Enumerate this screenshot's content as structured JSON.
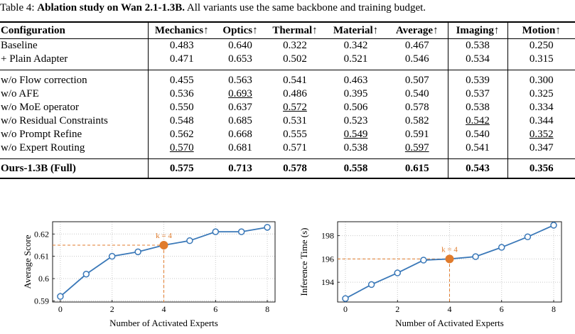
{
  "caption": {
    "label": "Table 4:",
    "title": "Ablation study on Wan 2.1-1.3B.",
    "text": "All variants use the same backbone and training budget."
  },
  "table": {
    "headers": [
      "Configuration",
      "Mechanics↑",
      "Optics↑",
      "Thermal↑",
      "Material↑",
      "Average↑",
      "Imaging↑",
      "Motion↑"
    ],
    "rows": [
      {
        "name": "Baseline",
        "values": [
          "0.483",
          "0.640",
          "0.322",
          "0.342",
          "0.467",
          "0.538",
          "0.250"
        ],
        "underline": []
      },
      {
        "name": "+ Plain Adapter",
        "values": [
          "0.471",
          "0.653",
          "0.502",
          "0.521",
          "0.546",
          "0.534",
          "0.315"
        ],
        "underline": []
      },
      {
        "name": "w/o Flow correction",
        "values": [
          "0.455",
          "0.563",
          "0.541",
          "0.463",
          "0.507",
          "0.539",
          "0.300"
        ],
        "underline": []
      },
      {
        "name": "w/o AFE",
        "values": [
          "0.536",
          "0.693",
          "0.486",
          "0.395",
          "0.540",
          "0.537",
          "0.325"
        ],
        "underline": [
          1
        ]
      },
      {
        "name": "w/o MoE operator",
        "values": [
          "0.550",
          "0.637",
          "0.572",
          "0.506",
          "0.578",
          "0.538",
          "0.334"
        ],
        "underline": [
          2
        ]
      },
      {
        "name": "w/o Residual Constraints",
        "values": [
          "0.548",
          "0.685",
          "0.531",
          "0.523",
          "0.582",
          "0.542",
          "0.344"
        ],
        "underline": [
          5
        ]
      },
      {
        "name": "w/o Prompt Refine",
        "values": [
          "0.562",
          "0.668",
          "0.555",
          "0.549",
          "0.591",
          "0.540",
          "0.352"
        ],
        "underline": [
          3,
          6
        ]
      },
      {
        "name": "w/o Expert Routing",
        "values": [
          "0.570",
          "0.681",
          "0.571",
          "0.538",
          "0.597",
          "0.541",
          "0.347"
        ],
        "underline": [
          0,
          4
        ]
      },
      {
        "name": "Ours-1.3B (Full)",
        "values": [
          "0.575",
          "0.713",
          "0.578",
          "0.558",
          "0.615",
          "0.543",
          "0.356"
        ],
        "bold": true,
        "underline": []
      }
    ]
  },
  "chart_data": [
    {
      "type": "line",
      "xlabel": "Number of Activated Experts",
      "ylabel": "Average Score",
      "x": [
        0,
        1,
        2,
        3,
        4,
        5,
        6,
        7,
        8
      ],
      "y": [
        0.592,
        0.602,
        0.61,
        0.612,
        0.615,
        0.617,
        0.621,
        0.621,
        0.623
      ],
      "xlim": [
        -0.3,
        8.3
      ],
      "ylim": [
        0.5895,
        0.6255
      ],
      "xticks": [
        0,
        2,
        4,
        6,
        8
      ],
      "yticks": [
        0.59,
        0.6,
        0.61,
        0.62
      ],
      "ytick_labels": [
        "0.59",
        "0.6",
        "0.61",
        "0.62"
      ],
      "highlight": {
        "x": 4,
        "y": 0.615,
        "label": "k = 4"
      },
      "grid": true,
      "line_color": "#3a78b8",
      "highlight_color": "#e07b2c"
    },
    {
      "type": "line",
      "xlabel": "Number of Activated Experts",
      "ylabel": "Inference Time (s)",
      "x": [
        0,
        1,
        2,
        3,
        4,
        5,
        6,
        7,
        8
      ],
      "y": [
        192.6,
        193.8,
        194.8,
        195.9,
        196.0,
        196.2,
        197.0,
        197.9,
        198.9
      ],
      "xlim": [
        -0.3,
        8.3
      ],
      "ylim": [
        192.3,
        199.2
      ],
      "xticks": [
        0,
        2,
        4,
        6,
        8
      ],
      "yticks": [
        194,
        196,
        198
      ],
      "ytick_labels": [
        "194",
        "196",
        "198"
      ],
      "highlight": {
        "x": 4,
        "y": 196.0,
        "label": "k = 4"
      },
      "grid": true,
      "line_color": "#3a78b8",
      "highlight_color": "#e07b2c"
    }
  ]
}
